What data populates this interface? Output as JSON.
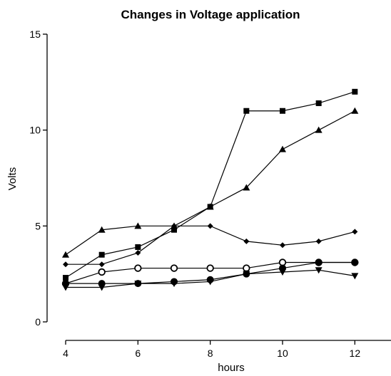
{
  "chart_data": {
    "type": "line",
    "title": "Changes in Voltage application",
    "xlabel": "hours",
    "ylabel": "Volts",
    "xlim": [
      4,
      13
    ],
    "ylim": [
      0,
      15
    ],
    "x_ticks": [
      4,
      6,
      8,
      10,
      12
    ],
    "y_ticks": [
      0,
      5,
      10,
      15
    ],
    "x_tick_labels": [
      "4",
      "6",
      "8",
      "10",
      "12"
    ],
    "y_tick_labels": [
      "0",
      "5",
      "10",
      "15"
    ],
    "grid": false,
    "legend": "none",
    "x": [
      4,
      5,
      6,
      7,
      8,
      9,
      10,
      11,
      12
    ],
    "series": [
      {
        "marker": "square",
        "values": [
          2.3,
          3.5,
          3.9,
          4.8,
          6.0,
          11.0,
          11.0,
          11.4,
          12.0
        ]
      },
      {
        "marker": "triangle-up",
        "values": [
          3.5,
          4.8,
          5.0,
          5.0,
          6.0,
          7.0,
          9.0,
          10.0,
          11.0
        ]
      },
      {
        "marker": "diamond",
        "values": [
          3.0,
          3.0,
          3.6,
          5.0,
          5.0,
          4.2,
          4.0,
          4.2,
          4.7
        ]
      },
      {
        "marker": "circle-open",
        "values": [
          2.0,
          2.6,
          2.8,
          2.8,
          2.8,
          2.8,
          3.1,
          3.1,
          3.1
        ]
      },
      {
        "marker": "circle-filled",
        "values": [
          2.0,
          2.0,
          2.0,
          2.1,
          2.2,
          2.5,
          2.8,
          3.1,
          3.1
        ]
      },
      {
        "marker": "triangle-down",
        "values": [
          1.8,
          1.8,
          2.0,
          2.0,
          2.1,
          2.5,
          2.6,
          2.7,
          2.4
        ]
      }
    ],
    "colors": {
      "line": "#000000",
      "background": "#ffffff"
    }
  }
}
